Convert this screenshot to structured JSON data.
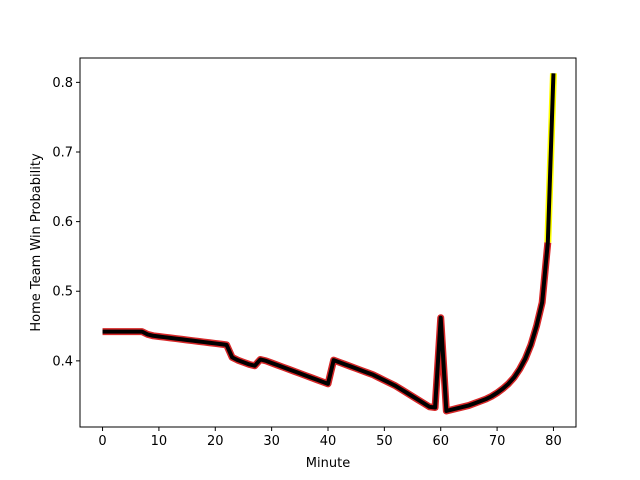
{
  "chart_data": {
    "type": "line",
    "xlabel": "Minute",
    "ylabel": "Home Team Win Probability",
    "xlim": [
      -4,
      84
    ],
    "ylim": [
      0.305,
      0.835
    ],
    "xticks": [
      0,
      10,
      20,
      30,
      40,
      50,
      60,
      70,
      80
    ],
    "yticks": [
      0.4,
      0.5,
      0.6,
      0.7,
      0.8
    ],
    "xtick_labels": [
      "0",
      "10",
      "20",
      "30",
      "40",
      "50",
      "60",
      "70",
      "80"
    ],
    "ytick_labels": [
      "0.4",
      "0.5",
      "0.6",
      "0.7",
      "0.8"
    ],
    "grid": false,
    "series": [
      {
        "color": "#000000",
        "segment_colors": [
          "#d62728",
          "#ffff00"
        ],
        "x": [
          0,
          1,
          2,
          3,
          4,
          5,
          6,
          7,
          8,
          9,
          10,
          11,
          12,
          13,
          14,
          15,
          16,
          17,
          18,
          19,
          20,
          21,
          22,
          23,
          24,
          25,
          26,
          27,
          28,
          29,
          30,
          31,
          32,
          33,
          34,
          35,
          36,
          37,
          38,
          39,
          40,
          41,
          42,
          43,
          44,
          45,
          46,
          47,
          48,
          49,
          50,
          51,
          52,
          53,
          54,
          55,
          56,
          57,
          58,
          59,
          60,
          61,
          62,
          63,
          64,
          65,
          66,
          67,
          68,
          69,
          70,
          71,
          72,
          73,
          74,
          75,
          76,
          77,
          78,
          79,
          80
        ],
        "values": [
          0.442,
          0.442,
          0.442,
          0.442,
          0.442,
          0.442,
          0.442,
          0.442,
          0.438,
          0.436,
          0.435,
          0.434,
          0.433,
          0.432,
          0.431,
          0.43,
          0.429,
          0.428,
          0.427,
          0.426,
          0.425,
          0.424,
          0.423,
          0.405,
          0.401,
          0.398,
          0.395,
          0.393,
          0.402,
          0.4,
          0.397,
          0.394,
          0.391,
          0.388,
          0.385,
          0.382,
          0.379,
          0.376,
          0.373,
          0.37,
          0.367,
          0.401,
          0.398,
          0.395,
          0.392,
          0.389,
          0.386,
          0.383,
          0.38,
          0.376,
          0.372,
          0.368,
          0.364,
          0.359,
          0.354,
          0.349,
          0.344,
          0.339,
          0.334,
          0.333,
          0.462,
          0.328,
          0.33,
          0.332,
          0.334,
          0.336,
          0.339,
          0.342,
          0.345,
          0.349,
          0.354,
          0.36,
          0.367,
          0.376,
          0.388,
          0.403,
          0.423,
          0.45,
          0.484,
          0.57,
          0.813
        ]
      }
    ]
  }
}
